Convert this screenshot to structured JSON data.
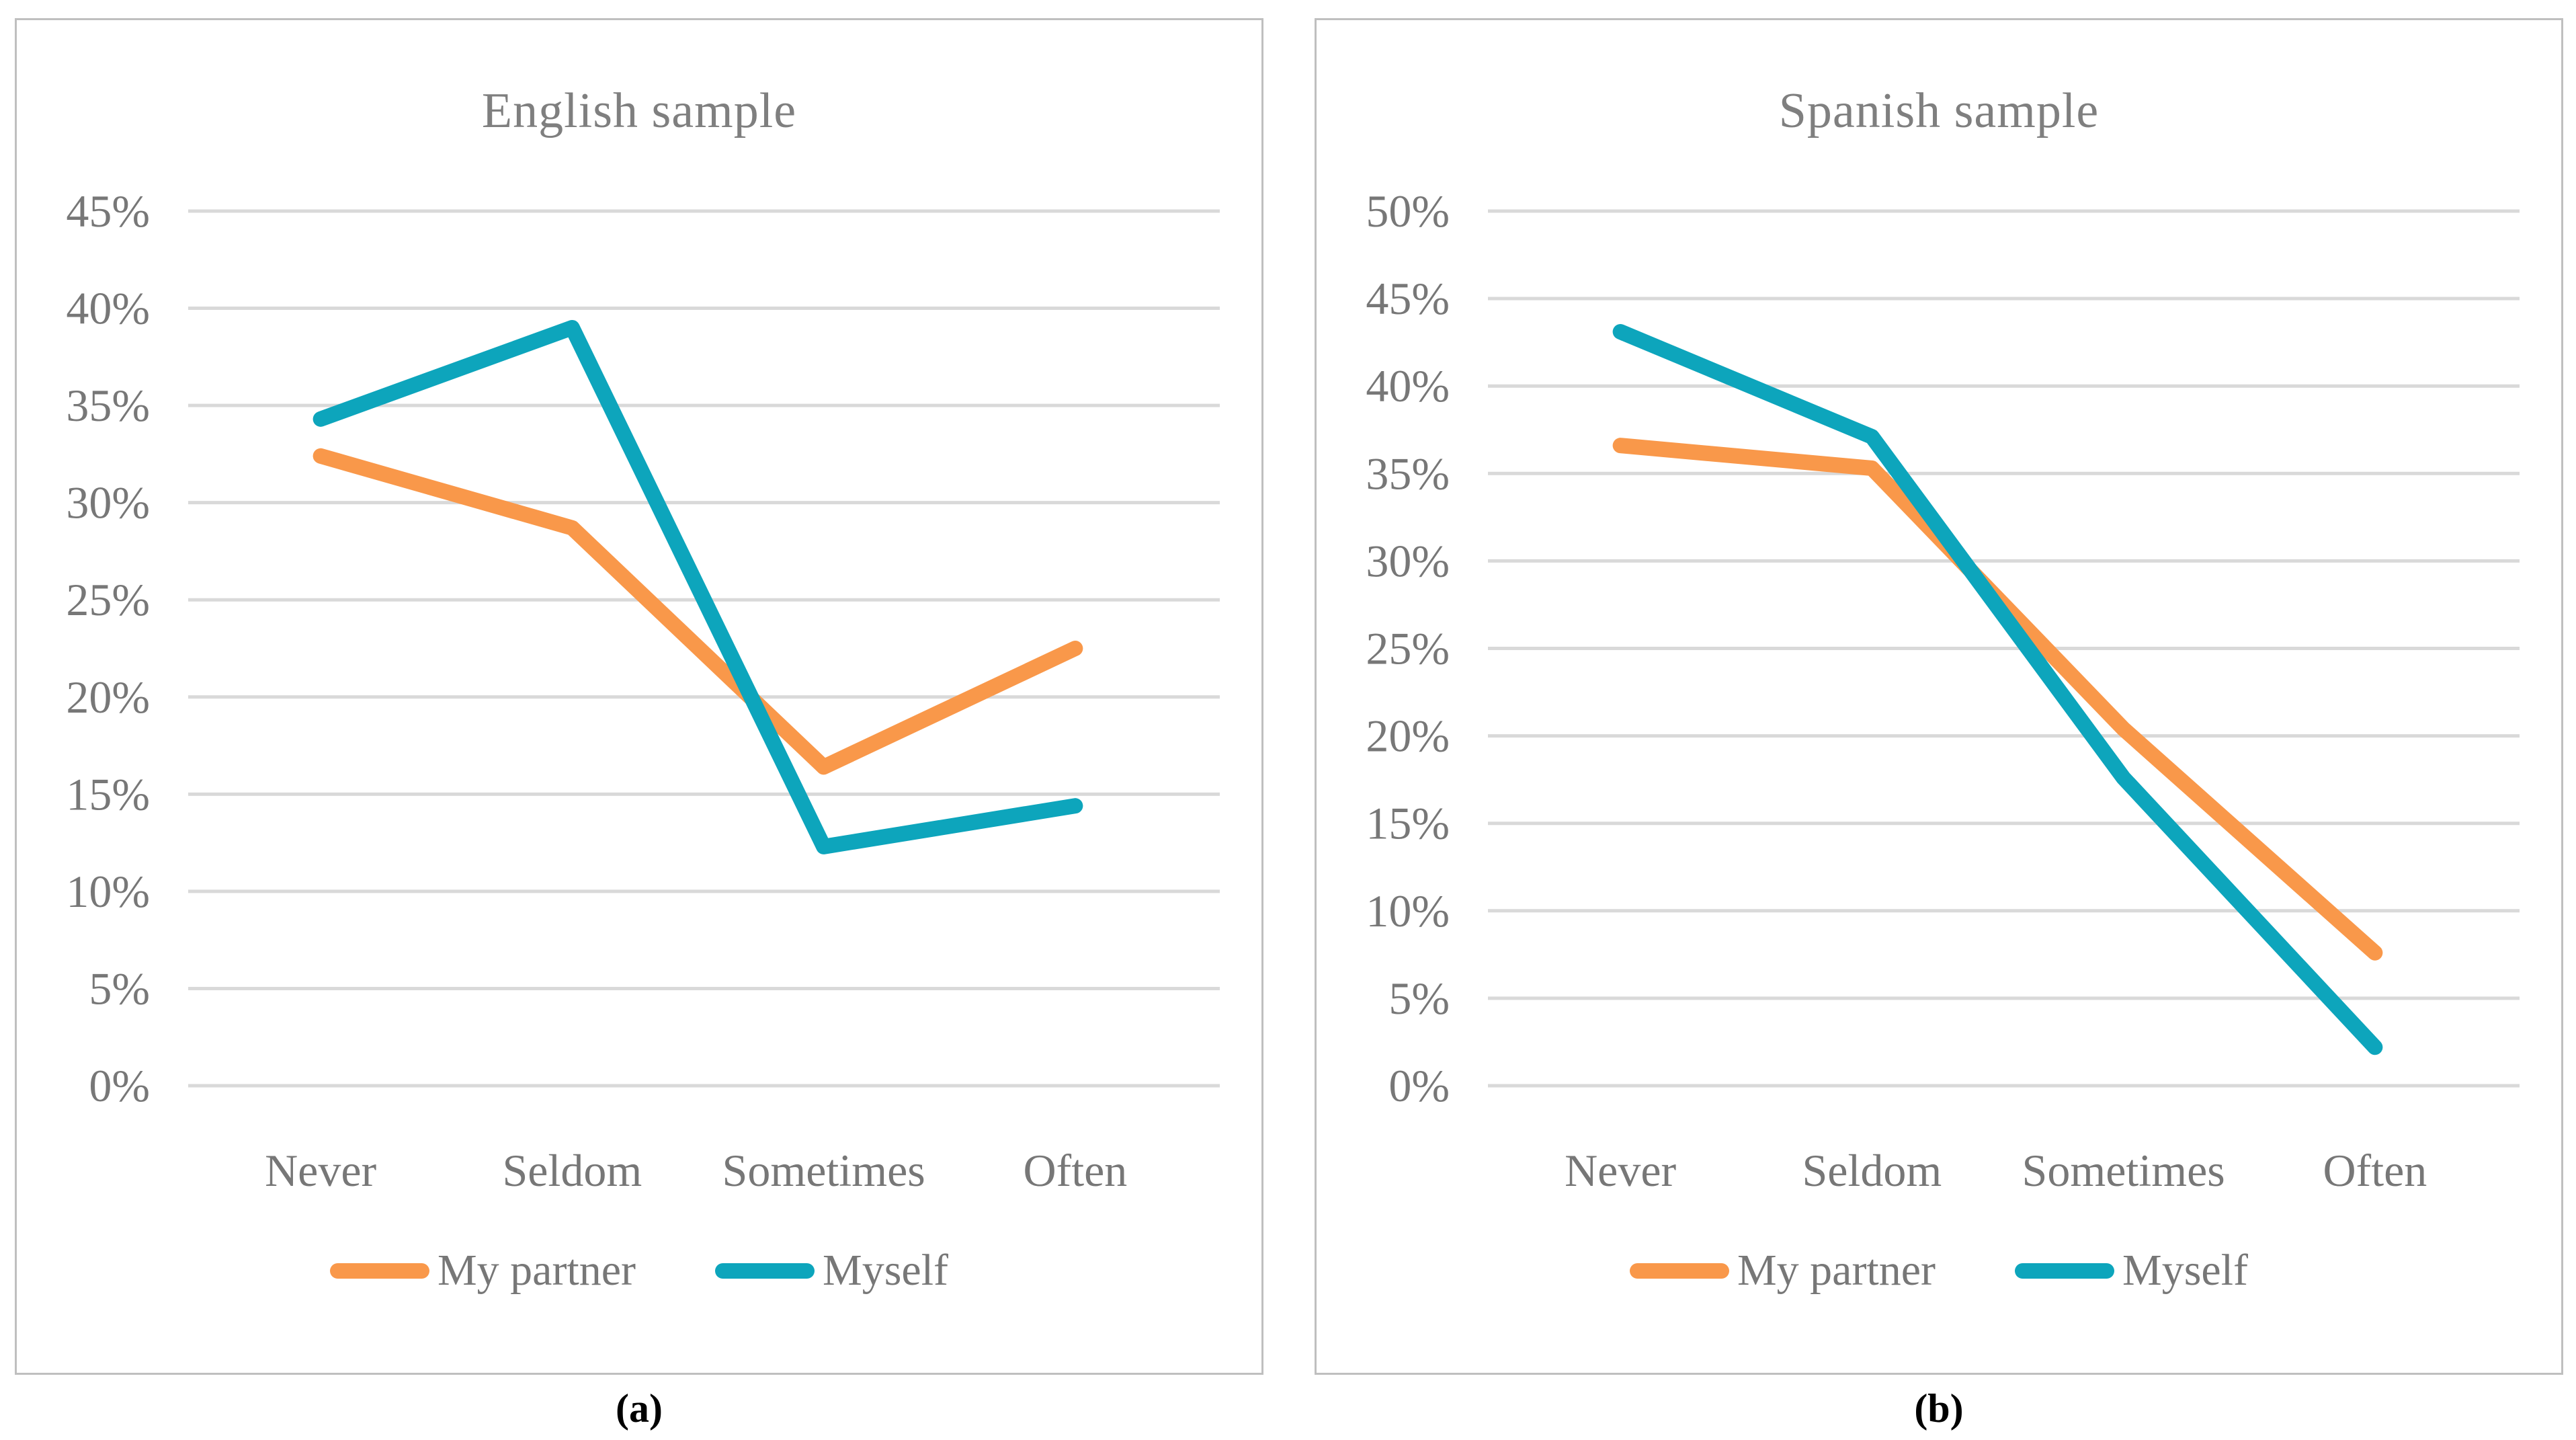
{
  "figure": {
    "background": "#FFFFFF",
    "panel_border_color": "#BFBFBF",
    "grid_color": "#D9D9D9",
    "tick_text_color": "#777777",
    "title_text_color": "#7F7F7F",
    "caption_text_color": "#000000"
  },
  "chart_data": [
    {
      "type": "line",
      "panel": "a",
      "title": "English sample",
      "caption": "(a)",
      "categories": [
        "Never",
        "Seldom",
        "Sometimes",
        "Often"
      ],
      "series": [
        {
          "name": "My partner",
          "color": "#F9984A",
          "values": [
            32.4,
            28.7,
            16.4,
            22.5
          ]
        },
        {
          "name": "Myself",
          "color": "#0DA5BC",
          "values": [
            34.3,
            39.0,
            12.3,
            14.4
          ]
        }
      ],
      "ylim": [
        0,
        45
      ],
      "ytick_step": 5,
      "ytick_labels": [
        "0%",
        "5%",
        "10%",
        "15%",
        "20%",
        "25%",
        "30%",
        "35%",
        "40%",
        "45%"
      ],
      "xlabel": "",
      "ylabel": "",
      "grid": true,
      "legend_position": "bottom"
    },
    {
      "type": "line",
      "panel": "b",
      "title": "Spanish sample",
      "caption": "(b)",
      "categories": [
        "Never",
        "Seldom",
        "Sometimes",
        "Often"
      ],
      "series": [
        {
          "name": "My partner",
          "color": "#F9984A",
          "values": [
            36.6,
            35.3,
            20.4,
            7.6
          ]
        },
        {
          "name": "Myself",
          "color": "#0DA5BC",
          "values": [
            43.1,
            37.1,
            17.6,
            2.2
          ]
        }
      ],
      "ylim": [
        0,
        50
      ],
      "ytick_step": 5,
      "ytick_labels": [
        "0%",
        "5%",
        "10%",
        "15%",
        "20%",
        "25%",
        "30%",
        "35%",
        "40%",
        "45%",
        "50%"
      ],
      "xlabel": "",
      "ylabel": "",
      "grid": true,
      "legend_position": "bottom"
    }
  ]
}
